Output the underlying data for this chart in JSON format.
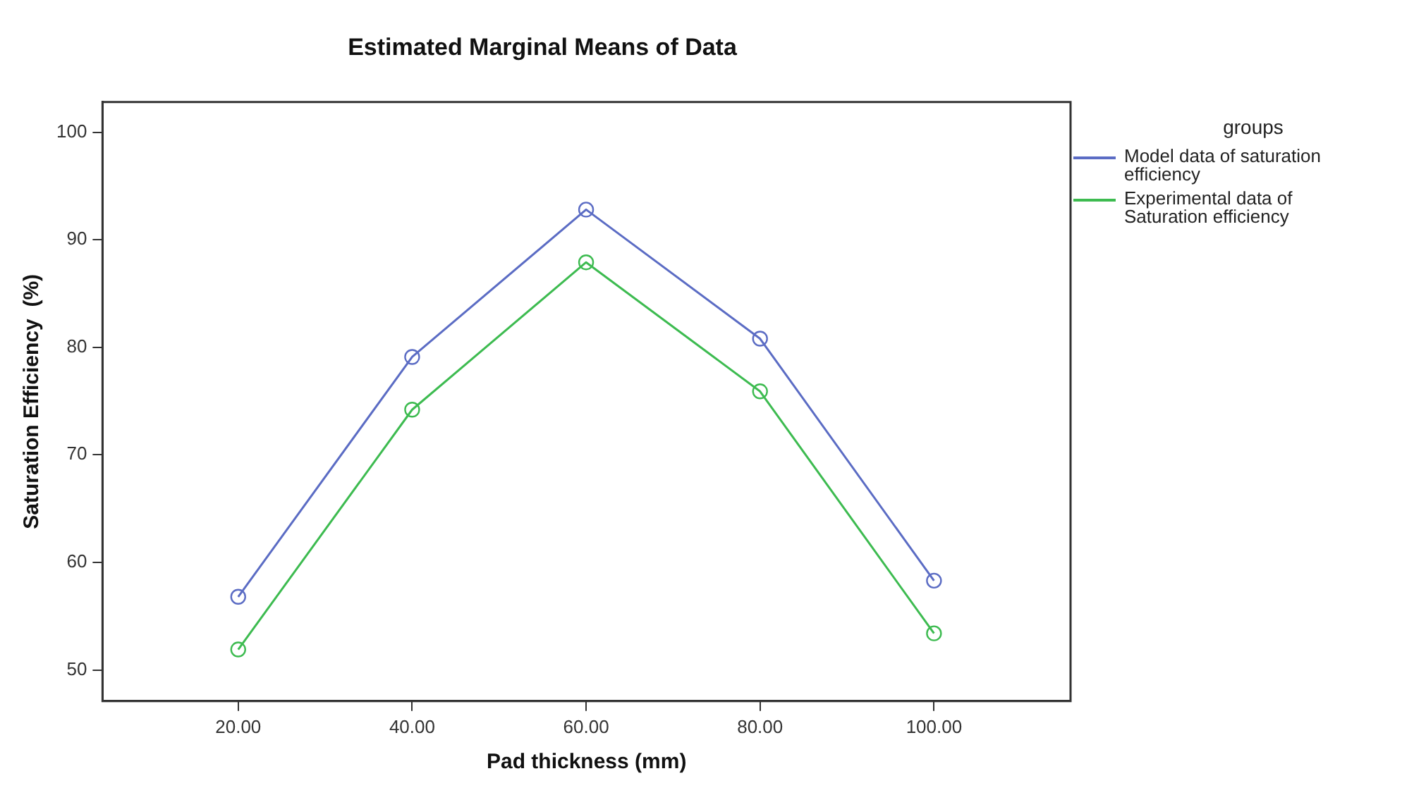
{
  "chart_data": {
    "type": "line",
    "title": "Estimated Marginal Means of Data",
    "xlabel": "Pad thickness (mm)",
    "ylabel": "Saturation Efficiency  (%)",
    "legend_title": "groups",
    "x": [
      20,
      40,
      60,
      80,
      100
    ],
    "series": [
      {
        "name": "Model data of saturation efficiency",
        "color": "#5b6cc4",
        "values": [
          56.8,
          79.1,
          92.8,
          80.8,
          58.3
        ]
      },
      {
        "name": "Experimental data of Saturation efficiency",
        "color": "#3dbb50",
        "values": [
          51.9,
          74.2,
          87.9,
          75.9,
          53.4
        ]
      }
    ],
    "xlim": [
      4.4,
      115.7
    ],
    "xticks": [
      {
        "value": 20,
        "label": "20.00"
      },
      {
        "value": 40,
        "label": "40.00"
      },
      {
        "value": 60,
        "label": "60.00"
      },
      {
        "value": 80,
        "label": "80.00"
      },
      {
        "value": 100,
        "label": "100.00"
      }
    ],
    "ylim": [
      47.1,
      102.8
    ],
    "yticks": [
      50,
      60,
      70,
      80,
      90,
      100
    ],
    "grid": false,
    "legend": "right",
    "marker": "circle",
    "line_style": "solid"
  }
}
